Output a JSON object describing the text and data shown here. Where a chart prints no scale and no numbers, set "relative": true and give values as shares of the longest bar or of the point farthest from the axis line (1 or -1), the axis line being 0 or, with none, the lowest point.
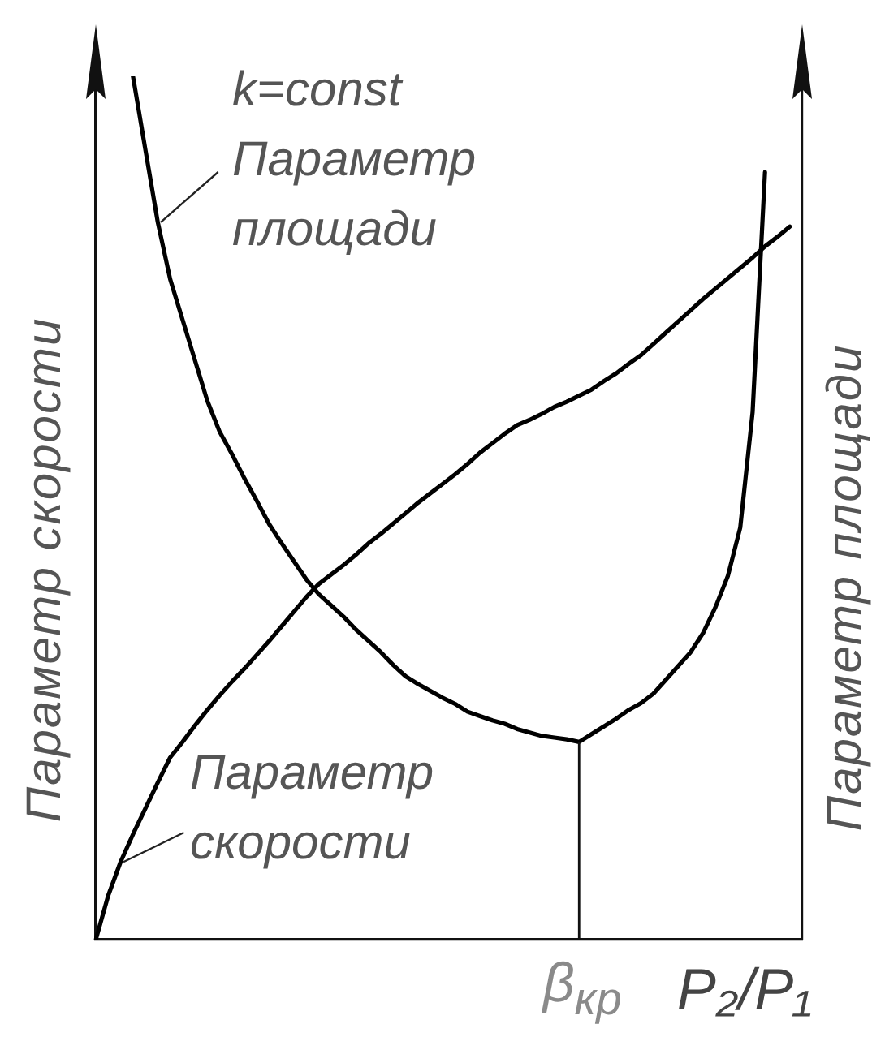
{
  "chart_data": {
    "type": "line",
    "relative": true,
    "categories": [
      null,
      null,
      null,
      null,
      null,
      null,
      null,
      null,
      null,
      null,
      null,
      null,
      null,
      null,
      null,
      null,
      null,
      null,
      null,
      null,
      null,
      null,
      null,
      null,
      null,
      null,
      null,
      null,
      null,
      null,
      null,
      null,
      null,
      null,
      null,
      null,
      null,
      null,
      null,
      null,
      null,
      null,
      null,
      null,
      null,
      null,
      null,
      null,
      null,
      null,
      null,
      null,
      null,
      null,
      null,
      null,
      null,
      null
    ],
    "series": [
      {
        "name": "Параметр скорости",
        "color": "#000000",
        "values": [
          0,
          0.051,
          0.09,
          0.122,
          0.152,
          0.182,
          0.211,
          0.229,
          0.248,
          0.266,
          0.283,
          0.299,
          0.314,
          0.33,
          0.346,
          0.363,
          0.38,
          0.397,
          0.412,
          0.423,
          0.434,
          0.446,
          0.459,
          0.47,
          0.482,
          0.494,
          0.506,
          0.517,
          0.528,
          0.539,
          0.551,
          0.564,
          0.575,
          0.586,
          0.596,
          0.602,
          0.609,
          0.617,
          0.623,
          0.63,
          0.637,
          0.647,
          0.656,
          0.667,
          0.677,
          0.69,
          0.703,
          0.716,
          0.729,
          0.742,
          0.754,
          0.766,
          0.778,
          0.79,
          0.803,
          0.814,
          0.826,
          null
        ]
      },
      {
        "name": "Параметр площади",
        "color": "#000000",
        "values": [
          null,
          null,
          null,
          1,
          0.915,
          0.831,
          0.765,
          0.718,
          0.671,
          0.624,
          0.588,
          0.562,
          0.534,
          0.508,
          0.481,
          0.459,
          0.438,
          0.417,
          0.4,
          0.387,
          0.374,
          0.359,
          0.346,
          0.333,
          0.318,
          0.305,
          0.296,
          0.288,
          0.28,
          0.273,
          0.264,
          0.259,
          0.254,
          0.25,
          0.244,
          0.24,
          0.236,
          0.234,
          0.232,
          0.229,
          0.238,
          0.247,
          0.256,
          0.266,
          0.274,
          0.285,
          0.301,
          0.317,
          0.333,
          0.355,
          0.385,
          0.421,
          0.477,
          0.611,
          0.889,
          null,
          null,
          null
        ]
      }
    ],
    "xlabel": "P₂/P₁",
    "ylabel": "Параметр скорости",
    "y2label": "Параметр площади",
    "annotations": [
      "k=const",
      "β$_{кр}$"
    ],
    "marker": "none",
    "legend": false
  }
}
